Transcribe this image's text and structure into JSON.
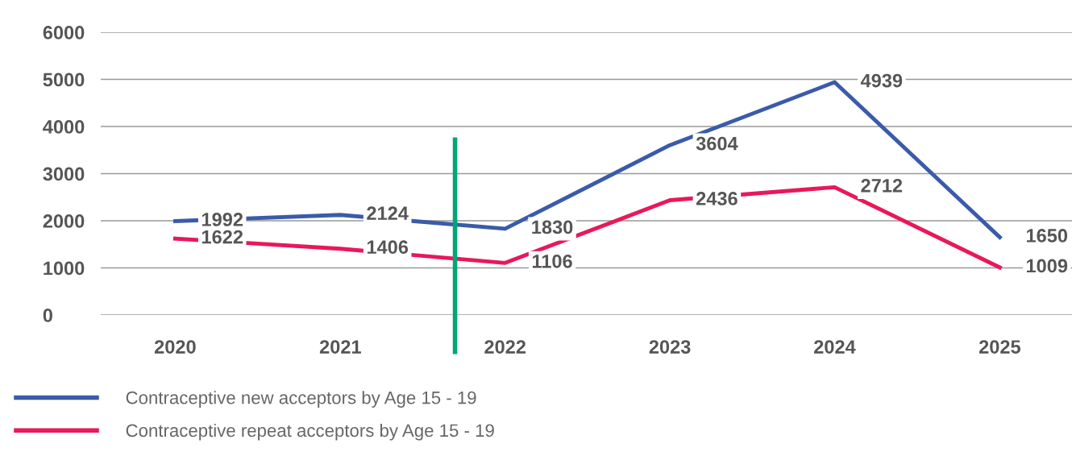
{
  "chart_data": {
    "type": "line",
    "x": [
      "2020",
      "2021",
      "2022",
      "2023",
      "2024",
      "2025"
    ],
    "series": [
      {
        "name": "Contraceptive new acceptors by Age 15 - 19",
        "color": "#3a5ba9",
        "values": [
          1992,
          2124,
          1830,
          3604,
          4939,
          1650
        ]
      },
      {
        "name": "Contraceptive repeat acceptors by Age 15 - 19",
        "color": "#e8185a",
        "values": [
          1622,
          1406,
          1106,
          2436,
          2712,
          1009
        ]
      }
    ],
    "xlim": [
      "2019-07-20",
      "2025-06-10"
    ],
    "xticks": [
      "2020",
      "2021",
      "2022",
      "2023",
      "2024",
      "2025"
    ],
    "ylim": [
      0,
      6000
    ],
    "yticks": [
      0,
      1000,
      2000,
      3000,
      4000,
      5000,
      6000
    ],
    "grid": "y",
    "legend": "bottom left",
    "data_labels": true,
    "marker": "none",
    "line_style": "solid",
    "ref_lines": [
      {
        "axis": "x",
        "value": "2021-09-12",
        "color": "#00a676"
      }
    ]
  }
}
